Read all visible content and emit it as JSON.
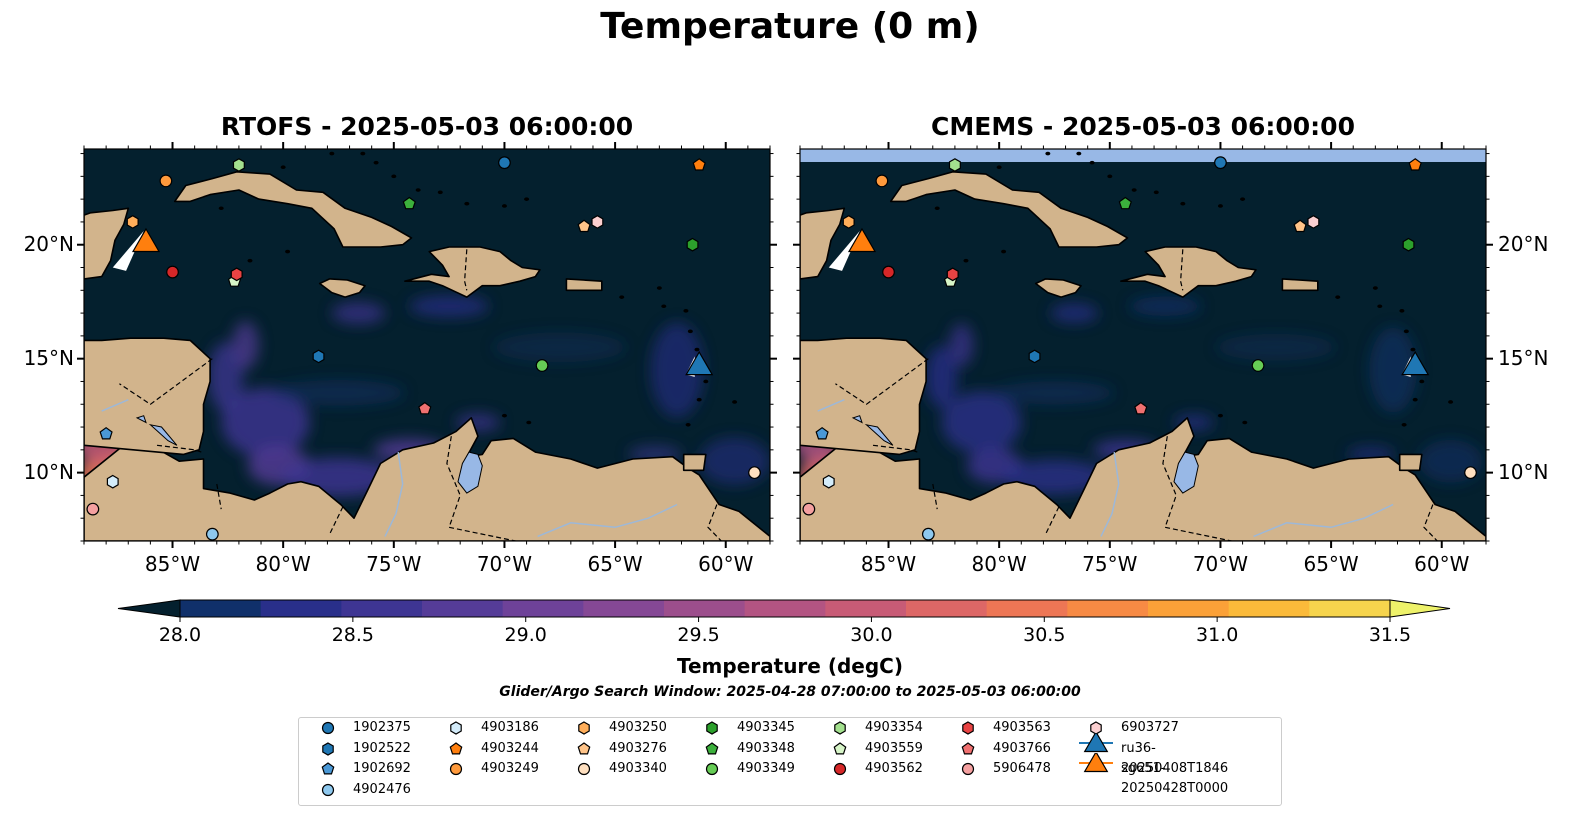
{
  "figure_title": "Temperature (0 m)",
  "panels": [
    {
      "title": "RTOFS - 2025-05-03 06:00:00"
    },
    {
      "title": "CMEMS - 2025-05-03 06:00:00"
    }
  ],
  "map_extent": {
    "lon": [
      -89,
      -58
    ],
    "lat": [
      7,
      24.2
    ]
  },
  "lon_ticks": [
    -85,
    -80,
    -75,
    -70,
    -65,
    -60
  ],
  "lon_tick_labels": [
    "85°W",
    "80°W",
    "75°W",
    "70°W",
    "65°W",
    "60°W"
  ],
  "lat_ticks": [
    10,
    15,
    20
  ],
  "lat_tick_labels": [
    "10°N",
    "15°N",
    "20°N"
  ],
  "colors": {
    "land": "#d2b48c",
    "ocean_base": "#04202e",
    "lake": "#98b8e6",
    "colorbar": [
      "#04202e",
      "#10306a",
      "#292f8a",
      "#3e3593",
      "#553c98",
      "#6e4299",
      "#854895",
      "#9c4e8c",
      "#b35482",
      "#c85b76",
      "#dd6766",
      "#ed7655",
      "#f78a44",
      "#fba138",
      "#fbba3a",
      "#f6d44d",
      "#eef26a"
    ]
  },
  "colorbar": {
    "min": 28.0,
    "max": 31.5,
    "ticks": [
      "28.0",
      "28.5",
      "29.0",
      "29.5",
      "30.0",
      "30.5",
      "31.0",
      "31.5"
    ],
    "label": "Temperature (degC)"
  },
  "search_window": "Glider/Argo Search Window: 2025-04-28 07:00:00 to 2025-05-03 06:00:00",
  "argo_floats": [
    {
      "id": "1902375",
      "marker": "circle",
      "color": "#1f77b4",
      "lon": -70.0,
      "lat": 23.6
    },
    {
      "id": "1902522",
      "marker": "hexagon",
      "color": "#1f77b4",
      "lon": -78.4,
      "lat": 15.1
    },
    {
      "id": "1902692",
      "marker": "pentagon",
      "color": "#4a98d6",
      "lon": -88.0,
      "lat": 11.7
    },
    {
      "id": "4902476",
      "marker": "circle",
      "color": "#8ec8ee",
      "lon": -83.2,
      "lat": 7.3
    },
    {
      "id": "4903186",
      "marker": "hexagon",
      "color": "#d4ecfa",
      "lon": -87.7,
      "lat": 9.6
    },
    {
      "id": "4903244",
      "marker": "pentagon",
      "color": "#ff7f0e",
      "lon": -61.2,
      "lat": 23.5
    },
    {
      "id": "4903249",
      "marker": "circle",
      "color": "#ff9a3c",
      "lon": -85.3,
      "lat": 22.8
    },
    {
      "id": "4903250",
      "marker": "hexagon",
      "color": "#ffae5a",
      "lon": -86.8,
      "lat": 21.0
    },
    {
      "id": "4903276",
      "marker": "pentagon",
      "color": "#ffc489",
      "lon": -66.4,
      "lat": 20.8
    },
    {
      "id": "4903340",
      "marker": "circle",
      "color": "#ffe0c0",
      "lon": -58.7,
      "lat": 10.0
    },
    {
      "id": "4903345",
      "marker": "hexagon",
      "color": "#2ca02c",
      "lon": -61.5,
      "lat": 20.0
    },
    {
      "id": "4903348",
      "marker": "pentagon",
      "color": "#3cb03c",
      "lon": -74.3,
      "lat": 21.8
    },
    {
      "id": "4903349",
      "marker": "circle",
      "color": "#66cc55",
      "lon": -68.3,
      "lat": 14.7
    },
    {
      "id": "4903354",
      "marker": "hexagon",
      "color": "#a3e08e",
      "lon": -82.0,
      "lat": 23.5
    },
    {
      "id": "4903559",
      "marker": "pentagon",
      "color": "#d7f5c8",
      "lon": -82.2,
      "lat": 18.4
    },
    {
      "id": "4903562",
      "marker": "circle",
      "color": "#d62728",
      "lon": -85.0,
      "lat": 18.8
    },
    {
      "id": "4903563",
      "marker": "hexagon",
      "color": "#e84343",
      "lon": -82.1,
      "lat": 18.7
    },
    {
      "id": "4903766",
      "marker": "pentagon",
      "color": "#f07070",
      "lon": -73.6,
      "lat": 12.8
    },
    {
      "id": "5906478",
      "marker": "circle",
      "color": "#f4a0a0",
      "lon": -88.6,
      "lat": 8.4
    },
    {
      "id": "6903727",
      "marker": "hexagon",
      "color": "#fbcfd0",
      "lon": -65.8,
      "lat": 21.0
    }
  ],
  "gliders": [
    {
      "id": "ru36-20250408T1846",
      "marker": "triangle",
      "color": "#1f77b4",
      "lon": -61.2,
      "lat": 14.5
    },
    {
      "id": "sg651-20250428T0000",
      "marker": "triangle",
      "color": "#ff7f0e",
      "lon": -86.2,
      "lat": 19.9
    }
  ]
}
